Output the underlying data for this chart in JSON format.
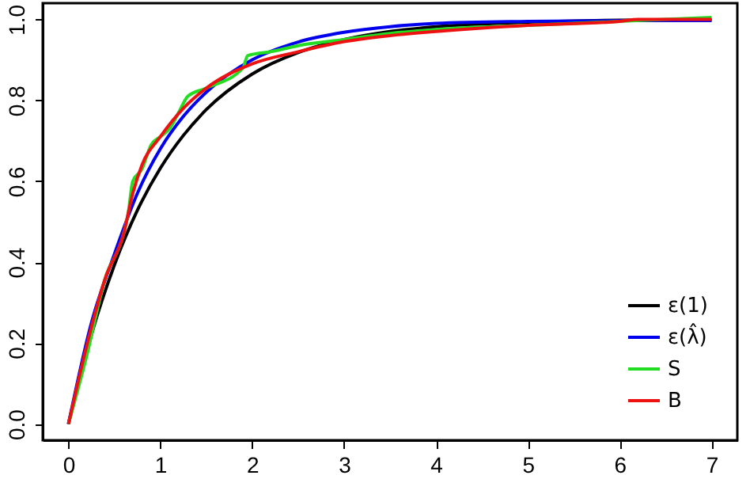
{
  "chart_data": {
    "type": "line",
    "xlim": [
      -0.28,
      7.28
    ],
    "ylim": [
      -0.04,
      1.04
    ],
    "xticks": [
      0,
      1,
      2,
      3,
      4,
      5,
      6,
      7
    ],
    "yticks": [
      {
        "value": 0,
        "label": "0.0"
      },
      {
        "value": 0.2,
        "label": "0.2"
      },
      {
        "value": 0.4,
        "label": "0.4"
      },
      {
        "value": 0.6,
        "label": "0.6"
      },
      {
        "value": 0.8,
        "label": "0.8"
      },
      {
        "value": 1,
        "label": "1.0"
      }
    ],
    "grid": false,
    "legend": "bottom right",
    "line_style": "solid",
    "marker": "none",
    "series": [
      {
        "name": "ε(1)",
        "color": "#000000",
        "x": [
          0,
          0.25,
          0.5,
          0.75,
          1,
          1.25,
          1.5,
          2,
          2.5,
          3,
          3.5,
          4,
          5,
          6,
          7
        ],
        "values": [
          0,
          0.221,
          0.393,
          0.528,
          0.632,
          0.713,
          0.777,
          0.865,
          0.918,
          0.95,
          0.97,
          0.982,
          0.993,
          0.998,
          0.999
        ]
      },
      {
        "name": "ε(λ̂)",
        "color": "#0000ee",
        "x": [
          0,
          0.25,
          0.5,
          0.75,
          1,
          1.25,
          1.5,
          2,
          2.5,
          3,
          3.5,
          4,
          5,
          6,
          7
        ],
        "values": [
          0,
          0.25,
          0.42,
          0.57,
          0.68,
          0.76,
          0.82,
          0.9,
          0.944,
          0.968,
          0.982,
          0.99,
          0.995,
          0.997,
          0.997
        ]
      },
      {
        "name": "S",
        "color": "#22dd22",
        "x": [
          0,
          0.2,
          0.4,
          0.6,
          0.65,
          0.7,
          0.8,
          0.9,
          1,
          1.1,
          1.2,
          1.3,
          1.5,
          1.9,
          1.95,
          2.2,
          2.5,
          3,
          3.5,
          4,
          5,
          6,
          7
        ],
        "values": [
          0,
          0.17,
          0.36,
          0.47,
          0.52,
          0.6,
          0.63,
          0.69,
          0.71,
          0.73,
          0.77,
          0.81,
          0.83,
          0.88,
          0.91,
          0.92,
          0.935,
          0.95,
          0.965,
          0.975,
          0.985,
          0.995,
          1.005
        ]
      },
      {
        "name": "B",
        "color": "#ee1111",
        "x": [
          0,
          0.1,
          0.25,
          0.4,
          0.6,
          0.7,
          0.8,
          1,
          1.25,
          1.5,
          2,
          2.5,
          3,
          3.5,
          4,
          5,
          6,
          6.2,
          7
        ],
        "values": [
          0,
          0.1,
          0.24,
          0.36,
          0.47,
          0.57,
          0.64,
          0.71,
          0.78,
          0.83,
          0.89,
          0.92,
          0.945,
          0.96,
          0.97,
          0.985,
          0.995,
          1.0,
          1.0
        ]
      }
    ]
  }
}
